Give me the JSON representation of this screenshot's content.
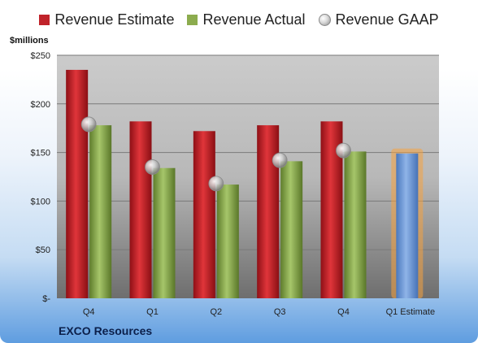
{
  "legend": {
    "estimate_label": "Revenue Estimate",
    "actual_label": "Revenue Actual",
    "gaap_label": "Revenue GAAP"
  },
  "y_unit": "$millions",
  "company": "EXCO Resources",
  "colors": {
    "estimate": "#c0232a",
    "actual": "#8cac4e",
    "projection": "#6f9ad6",
    "projection_glow": "#f5a340",
    "plot_bg": "#c8c8c8",
    "grid": "#7a7a7a"
  },
  "chart_data": {
    "type": "bar",
    "categories": [
      "Q4",
      "Q1",
      "Q2",
      "Q3",
      "Q4",
      "Q1 Estimate"
    ],
    "series": [
      {
        "name": "Revenue Estimate",
        "values": [
          235,
          182,
          172,
          178,
          182,
          null
        ]
      },
      {
        "name": "Revenue Actual",
        "values": [
          178,
          134,
          117,
          141,
          151,
          149
        ]
      },
      {
        "name": "Revenue GAAP",
        "values": [
          179,
          135,
          118,
          142,
          152,
          null
        ]
      }
    ],
    "ylim": [
      0,
      250
    ],
    "ytick_values": [
      0,
      50,
      100,
      150,
      200,
      250
    ],
    "ytick_labels": [
      "$-",
      "$50",
      "$100",
      "$150",
      "$200",
      "$250"
    ],
    "grid": true
  }
}
